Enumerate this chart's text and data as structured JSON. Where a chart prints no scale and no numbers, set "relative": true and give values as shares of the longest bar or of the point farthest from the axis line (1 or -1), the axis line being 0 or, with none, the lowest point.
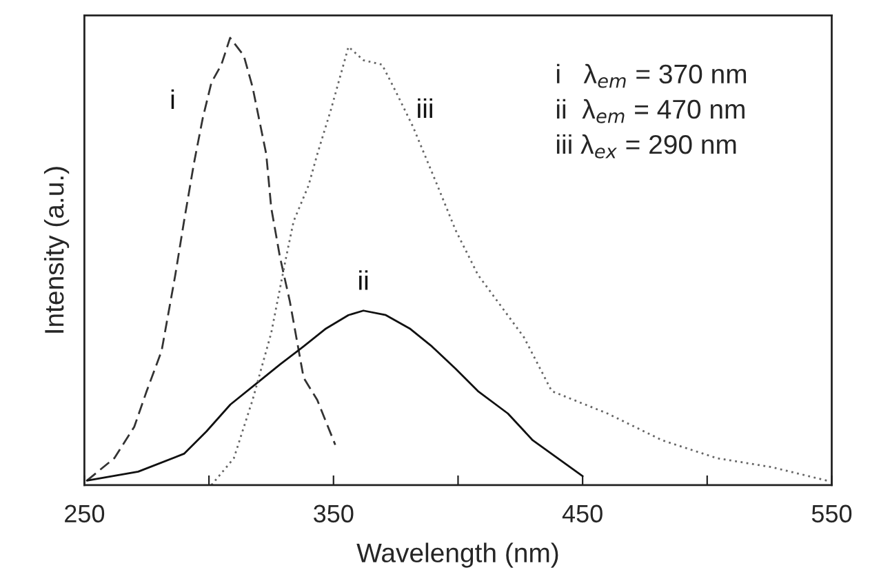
{
  "chart_data": {
    "type": "line",
    "relative": true,
    "xlabel": "Wavelength (nm)",
    "ylabel": "Intensity (a.u.)",
    "xlim": [
      250,
      550
    ],
    "xticks": [
      250,
      {
        "value": 300,
        "label": null
      },
      350,
      {
        "value": 400,
        "label": null
      },
      450,
      {
        "value": 500,
        "label": null
      },
      550
    ],
    "tick_labels": "x",
    "grid": false,
    "legend": false,
    "series": [
      {
        "name": "i",
        "color": "#333333",
        "line_style": "dashed",
        "x": [
          251,
          262,
          270,
          275,
          281,
          286.5,
          290,
          294,
          297.5,
          301,
          305,
          308.5,
          314,
          317.5,
          323,
          325,
          328.5,
          332.5,
          338,
          343.5,
          350.7
        ],
        "values": [
          0.01,
          0.06,
          0.13,
          0.21,
          0.3,
          0.47,
          0.59,
          0.72,
          0.82,
          0.9,
          0.94,
          1.0,
          0.96,
          0.89,
          0.74,
          0.62,
          0.51,
          0.41,
          0.24,
          0.19,
          0.09
        ]
      },
      {
        "name": "ii",
        "color": "#111111",
        "line_style": "solid",
        "x": [
          251,
          271.6,
          290,
          299,
          308.6,
          319.7,
          328.6,
          338,
          347,
          356,
          362,
          371,
          380.6,
          389.5,
          399,
          408,
          420,
          430,
          440,
          450
        ],
        "values": [
          0.01,
          0.03,
          0.07,
          0.12,
          0.18,
          0.23,
          0.27,
          0.31,
          0.35,
          0.38,
          0.39,
          0.38,
          0.35,
          0.31,
          0.26,
          0.21,
          0.16,
          0.1,
          0.06,
          0.02
        ]
      },
      {
        "name": "iii",
        "color": "#666666",
        "line_style": "dotted",
        "x": [
          301,
          310,
          317.5,
          325,
          331,
          334,
          340,
          343.5,
          349,
          353,
          356,
          362,
          369.5,
          375,
          382,
          391.7,
          399,
          408,
          426.5,
          437.6,
          460,
          482,
          504,
          526,
          548
        ],
        "values": [
          0.0,
          0.06,
          0.19,
          0.34,
          0.51,
          0.59,
          0.67,
          0.74,
          0.84,
          0.92,
          0.98,
          0.95,
          0.94,
          0.88,
          0.8,
          0.67,
          0.57,
          0.47,
          0.33,
          0.21,
          0.16,
          0.1,
          0.06,
          0.04,
          0.01
        ]
      }
    ],
    "annotations": [
      "i   λ$_{em}$ = 370 nm",
      "ii  λ$_{em}$ = 470 nm",
      "iii λ$_{ex}$ = 290 nm"
    ]
  }
}
